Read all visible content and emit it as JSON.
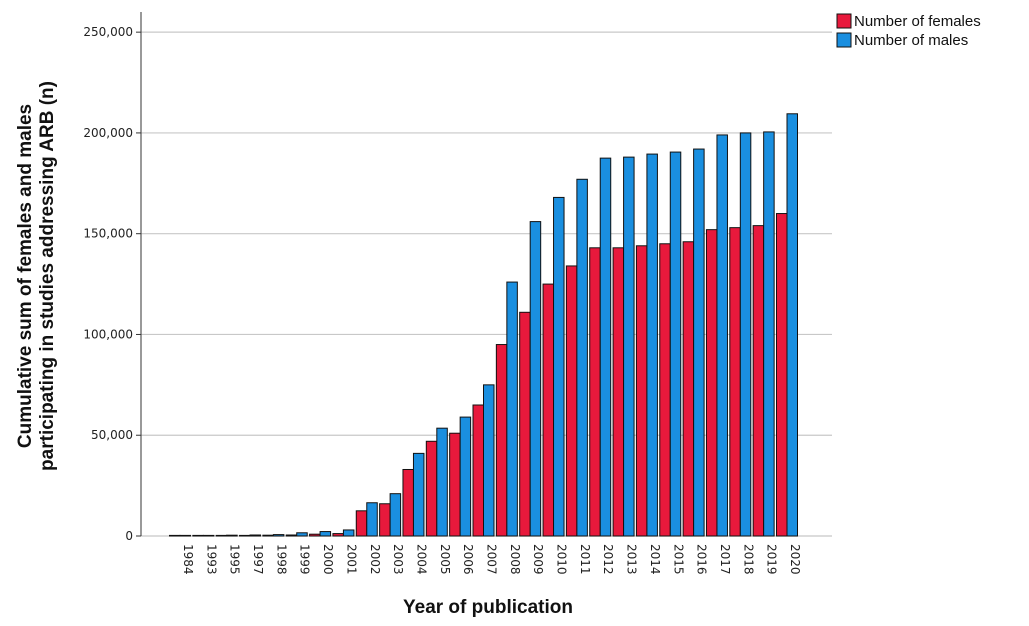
{
  "chart_data": {
    "type": "bar",
    "title": "",
    "xlabel": "Year of publication",
    "ylabel_lines": [
      "Cumulative sum of females and males",
      "participating in studies addressing ARB (n)"
    ],
    "ylim": [
      0,
      260000
    ],
    "yticks": [
      0,
      50000,
      100000,
      150000,
      200000,
      250000
    ],
    "ytick_labels": [
      "0",
      "50,000",
      "100,000",
      "150,000",
      "200,000",
      "250,000"
    ],
    "grid": "horizontal",
    "legend_position": "top-right",
    "categories": [
      "1984",
      "1993",
      "1995",
      "1997",
      "1998",
      "1999",
      "2000",
      "2001",
      "2002",
      "2003",
      "2004",
      "2005",
      "2006",
      "2007",
      "2008",
      "2009",
      "2010",
      "2011",
      "2012",
      "2013",
      "2014",
      "2015",
      "2016",
      "2017",
      "2018",
      "2019",
      "2020"
    ],
    "series": [
      {
        "name": "Number of females",
        "color": "#e8193c",
        "values": [
          200,
          200,
          300,
          300,
          400,
          500,
          900,
          1200,
          12500,
          16000,
          33000,
          47000,
          51000,
          65000,
          95000,
          111000,
          125000,
          134000,
          143000,
          143000,
          144000,
          145000,
          146000,
          152000,
          153000,
          154000,
          160000
        ]
      },
      {
        "name": "Number of males",
        "color": "#1a8fe0",
        "values": [
          300,
          300,
          400,
          500,
          700,
          1600,
          2200,
          3000,
          16500,
          21000,
          41000,
          53500,
          59000,
          75000,
          126000,
          156000,
          168000,
          177000,
          187500,
          188000,
          189500,
          190500,
          192000,
          199000,
          200000,
          200500,
          209500
        ]
      }
    ]
  }
}
